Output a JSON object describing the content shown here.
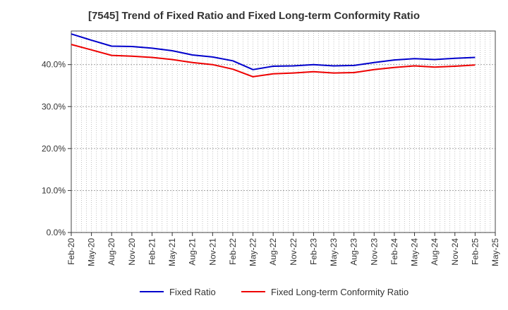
{
  "chart_data": {
    "type": "line",
    "title": "[7545]  Trend of Fixed Ratio and Fixed Long-term Conformity Ratio",
    "x": [
      "Feb-20",
      "May-20",
      "Aug-20",
      "Nov-20",
      "Feb-21",
      "May-21",
      "Aug-21",
      "Nov-21",
      "Feb-22",
      "May-22",
      "Aug-22",
      "Nov-22",
      "Feb-23",
      "May-23",
      "Aug-23",
      "Nov-23",
      "Feb-24",
      "May-24",
      "Aug-24",
      "Nov-24",
      "Feb-25",
      "May-25"
    ],
    "series": [
      {
        "name": "Fixed Ratio",
        "color": "#0000cc",
        "values": [
          47.3,
          45.8,
          44.4,
          44.3,
          43.9,
          43.3,
          42.3,
          41.8,
          40.9,
          38.8,
          39.6,
          39.7,
          40.0,
          39.7,
          39.8,
          40.5,
          41.1,
          41.4,
          41.2,
          41.5,
          41.7,
          null
        ]
      },
      {
        "name": "Fixed Long-term Conformity Ratio",
        "color": "#ee0000",
        "values": [
          44.8,
          43.5,
          42.2,
          42.0,
          41.7,
          41.2,
          40.5,
          40.0,
          38.9,
          37.1,
          37.8,
          38.0,
          38.3,
          38.0,
          38.1,
          38.8,
          39.3,
          39.7,
          39.4,
          39.6,
          39.9,
          null
        ]
      }
    ],
    "yticks": [
      "0.0%",
      "10.0%",
      "20.0%",
      "30.0%",
      "40.0%"
    ],
    "ylim": [
      0,
      48
    ],
    "xlabel": "",
    "ylabel": "",
    "grid": true,
    "legend_position": "bottom"
  }
}
